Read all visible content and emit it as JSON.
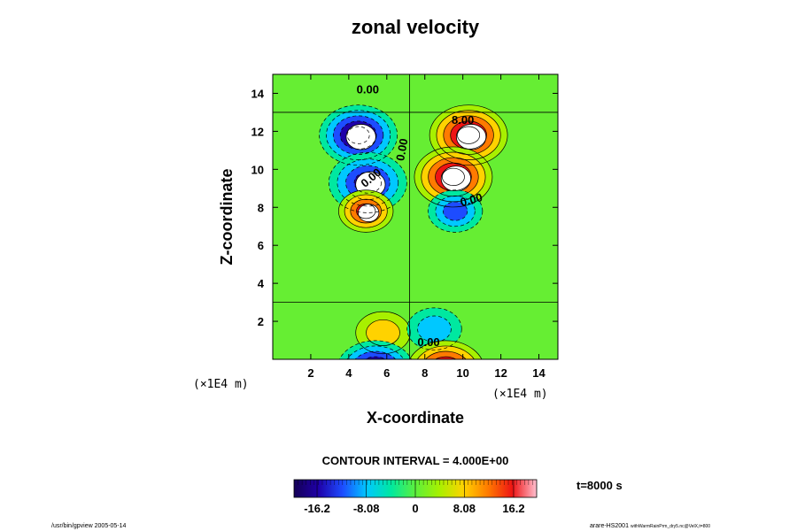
{
  "chart_data": {
    "type": "heatmap",
    "title": "zonal velocity",
    "xlabel": "X-coordinate",
    "ylabel": "Z-coordinate",
    "x_unit": "(×1E4 m)",
    "z_unit": "(×1E4 m)",
    "x_range": [
      0,
      15
    ],
    "z_range": [
      0,
      15
    ],
    "x_ticks": [
      "2",
      "4",
      "6",
      "8",
      "10",
      "12",
      "14"
    ],
    "z_ticks": [
      "2",
      "4",
      "6",
      "8",
      "10",
      "12",
      "14"
    ],
    "contour_labels": [
      "0.00",
      "8.00",
      "0.00",
      "0.00",
      "0.00",
      "0.00"
    ],
    "contour_interval_text": "CONTOUR INTERVAL = 4.000E+00",
    "colorbar_ticks": [
      "-16.2",
      "-8.08",
      "0",
      "8.08",
      "16.2"
    ],
    "colorbar_range": [
      -20,
      20
    ],
    "time_text": "t=8000 s",
    "footer_left": "/usr/bin/gpview 2005-05-14",
    "footer_right_main": "arare-HS2001",
    "footer_right_sub": "withWarmRainPrm_dry5.nc@VelX,t=800",
    "grid": false,
    "features": [
      {
        "kind": "negative-core",
        "x": 4.5,
        "z": 11.8,
        "peak": -20
      },
      {
        "kind": "positive-core",
        "x": 10.3,
        "z": 11.8,
        "peak": 20
      },
      {
        "kind": "negative-core",
        "x": 5.0,
        "z": 9.3,
        "peak": -18
      },
      {
        "kind": "positive-core",
        "x": 9.5,
        "z": 9.6,
        "peak": 20
      },
      {
        "kind": "positive-core",
        "x": 4.9,
        "z": 7.8,
        "peak": 16
      },
      {
        "kind": "negative-core",
        "x": 9.6,
        "z": 7.8,
        "peak": -14
      },
      {
        "kind": "positive-core",
        "x": 5.8,
        "z": 1.4,
        "peak": 8
      },
      {
        "kind": "negative-core",
        "x": 8.5,
        "z": 1.6,
        "peak": -8
      },
      {
        "kind": "negative-core",
        "x": 5.4,
        "z": -0.6,
        "peak": -22
      },
      {
        "kind": "positive-core",
        "x": 9.1,
        "z": -0.6,
        "peak": 22
      }
    ],
    "colors": {
      "stops": [
        "#140056",
        "#1f00a8",
        "#1d4cff",
        "#00c8ff",
        "#00e8a0",
        "#5cf03c",
        "#a8f000",
        "#ffd200",
        "#ff7a00",
        "#ee1414",
        "#ffc0d0"
      ],
      "background_field": "#66ee33"
    }
  }
}
